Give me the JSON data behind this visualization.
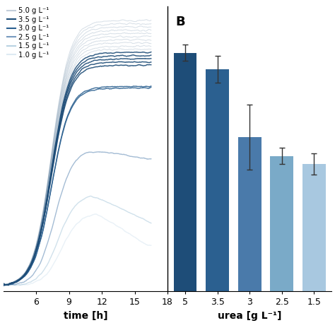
{
  "legend_labels": [
    "5.0 g L⁻¹",
    "3.5 g L⁻¹",
    "3.0 g L⁻¹",
    "2.5 g L⁻¹",
    "1.5 g L⁻¹",
    "1.0 g L⁻¹"
  ],
  "bar_categories": [
    "5",
    "3.5",
    "3",
    "2.5",
    "1.5"
  ],
  "bar_values": [
    0.88,
    0.82,
    0.57,
    0.5,
    0.47
  ],
  "bar_errors": [
    0.03,
    0.05,
    0.12,
    0.03,
    0.04
  ],
  "bar_colors": [
    "#1e4d78",
    "#2b6090",
    "#4a7aaa",
    "#7aaac8",
    "#a8c8e0"
  ],
  "bar_label_B": "B",
  "xlabel_left": "time [h]",
  "xlabel_right": "urea [g L⁻¹]",
  "xticks_left": [
    6,
    9,
    12,
    15,
    18
  ],
  "urea_levels": [
    5.0,
    3.5,
    3.0,
    2.5,
    1.5,
    1.0
  ],
  "line_colors": [
    "#1e4d78",
    "#1e4d78",
    "#2b6090",
    "#4a7aaa",
    "#7aaac8",
    "#a8c8e0"
  ],
  "line_base_alphas": [
    0.18,
    0.9,
    0.9,
    0.5,
    0.35,
    0.25
  ],
  "replicate_counts": [
    15,
    5,
    2,
    1,
    1,
    1
  ],
  "plateau_values": [
    0.92,
    0.86,
    0.75,
    0.52,
    0.35,
    0.28
  ],
  "peak_times": [
    10.0,
    10.0,
    10.0,
    10.5,
    11.0,
    11.5
  ]
}
